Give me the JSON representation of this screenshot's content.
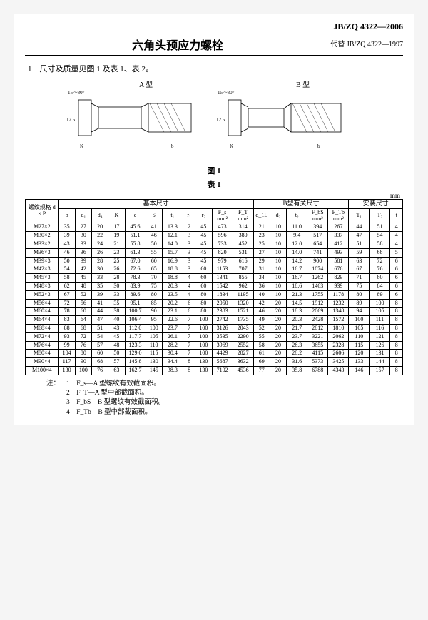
{
  "standard_code": "JB/ZQ 4322—2006",
  "replaces": "代替 JB/ZQ 4322—1997",
  "title": "六角头预应力螺栓",
  "section1": "1　尺寸及质量见图 1 及表 1、表 2。",
  "fig_label_a": "A 型",
  "fig_label_b": "B 型",
  "fig_caption": "图 1",
  "table_caption": "表 1",
  "unit": "mm",
  "group_basic": "基本尺寸",
  "group_b": "B型有关尺寸",
  "group_mount": "安装尺寸",
  "headers1": {
    "spec": "螺纹规格\nd × P",
    "b": "b",
    "d1": "d₁",
    "d4": "d₄",
    "K": "K",
    "e": "e",
    "S": "S",
    "t1": "t₁",
    "r1": "r₁",
    "r2": "r₂",
    "Fs": "F_s\nmm²",
    "FT": "F_T\nmm²",
    "d1b": "d_1L",
    "d2b": "d₂",
    "t2": "t₂",
    "FbS": "F_bS\nmm²",
    "FTb": "F_Tb\nmm²",
    "T1": "T₁",
    "T2": "T₂",
    "t": "t"
  },
  "rows": [
    [
      "M27×2",
      "35",
      "27",
      "20",
      "17",
      "45.6",
      "41",
      "13.3",
      "2",
      "45",
      "473",
      "314",
      "21",
      "10",
      "11.0",
      "394",
      "267",
      "44",
      "51",
      "4"
    ],
    [
      "M30×2",
      "39",
      "30",
      "22",
      "19",
      "51.1",
      "46",
      "12.1",
      "3",
      "45",
      "596",
      "380",
      "23",
      "10",
      "9.4",
      "517",
      "337",
      "47",
      "54",
      "4"
    ],
    [
      "M33×2",
      "43",
      "33",
      "24",
      "21",
      "55.8",
      "50",
      "14.0",
      "3",
      "45",
      "733",
      "452",
      "25",
      "10",
      "12.0",
      "654",
      "412",
      "51",
      "58",
      "4"
    ],
    [
      "M36×3",
      "46",
      "36",
      "26",
      "23",
      "61.3",
      "55",
      "15.7",
      "3",
      "45",
      "820",
      "531",
      "27",
      "10",
      "14.0",
      "741",
      "493",
      "59",
      "68",
      "5"
    ],
    [
      "M39×3",
      "50",
      "39",
      "28",
      "25",
      "67.0",
      "60",
      "16.9",
      "3",
      "45",
      "979",
      "616",
      "29",
      "10",
      "14.2",
      "900",
      "581",
      "63",
      "72",
      "6"
    ],
    [
      "M42×3",
      "54",
      "42",
      "30",
      "26",
      "72.6",
      "65",
      "18.8",
      "3",
      "60",
      "1153",
      "707",
      "31",
      "10",
      "16.7",
      "1074",
      "676",
      "67",
      "76",
      "6"
    ],
    [
      "M45×3",
      "58",
      "45",
      "33",
      "28",
      "78.3",
      "70",
      "18.8",
      "4",
      "60",
      "1341",
      "855",
      "34",
      "10",
      "16.7",
      "1262",
      "829",
      "71",
      "80",
      "6"
    ],
    [
      "M48×3",
      "62",
      "48",
      "35",
      "30",
      "83.9",
      "75",
      "20.3",
      "4",
      "60",
      "1542",
      "962",
      "36",
      "10",
      "18.6",
      "1463",
      "939",
      "75",
      "84",
      "6"
    ],
    [
      "M52×3",
      "67",
      "52",
      "39",
      "33",
      "89.6",
      "80",
      "23.5",
      "4",
      "80",
      "1834",
      "1195",
      "40",
      "10",
      "21.3",
      "1755",
      "1178",
      "80",
      "89",
      "6"
    ],
    [
      "M56×4",
      "72",
      "56",
      "41",
      "35",
      "95.1",
      "85",
      "20.2",
      "6",
      "80",
      "2050",
      "1320",
      "42",
      "20",
      "14.5",
      "1912",
      "1232",
      "89",
      "100",
      "8"
    ],
    [
      "M60×4",
      "78",
      "60",
      "44",
      "38",
      "100.7",
      "90",
      "23.1",
      "6",
      "80",
      "2383",
      "1521",
      "46",
      "20",
      "18.3",
      "2069",
      "1348",
      "94",
      "105",
      "8"
    ],
    [
      "M64×4",
      "83",
      "64",
      "47",
      "40",
      "106.4",
      "95",
      "22.6",
      "7",
      "100",
      "2742",
      "1735",
      "49",
      "20",
      "20.3",
      "2428",
      "1572",
      "100",
      "111",
      "8"
    ],
    [
      "M68×4",
      "88",
      "68",
      "51",
      "43",
      "112.0",
      "100",
      "23.7",
      "7",
      "100",
      "3126",
      "2043",
      "52",
      "20",
      "21.7",
      "2812",
      "1810",
      "105",
      "116",
      "8"
    ],
    [
      "M72×4",
      "93",
      "72",
      "54",
      "45",
      "117.7",
      "105",
      "26.1",
      "7",
      "100",
      "3535",
      "2290",
      "55",
      "20",
      "23.7",
      "3221",
      "2062",
      "110",
      "121",
      "8"
    ],
    [
      "M76×4",
      "99",
      "76",
      "57",
      "48",
      "123.3",
      "110",
      "28.2",
      "7",
      "100",
      "3969",
      "2552",
      "58",
      "20",
      "26.3",
      "3655",
      "2328",
      "115",
      "126",
      "8"
    ],
    [
      "M80×4",
      "104",
      "80",
      "60",
      "50",
      "129.0",
      "115",
      "30.4",
      "7",
      "100",
      "4429",
      "2827",
      "61",
      "20",
      "28.2",
      "4115",
      "2606",
      "120",
      "131",
      "8"
    ],
    [
      "M90×4",
      "117",
      "90",
      "68",
      "57",
      "145.8",
      "130",
      "34.4",
      "8",
      "130",
      "5687",
      "3632",
      "69",
      "20",
      "31.6",
      "5373",
      "3425",
      "133",
      "144",
      "8"
    ],
    [
      "M100×4",
      "130",
      "100",
      "76",
      "63",
      "162.7",
      "145",
      "38.3",
      "8",
      "130",
      "7102",
      "4536",
      "77",
      "20",
      "35.8",
      "6788",
      "4343",
      "146",
      "157",
      "8"
    ]
  ],
  "notes_lead": "注：",
  "notes": [
    "1　F_s—A 型螺纹有效截面积。",
    "2　F_T—A 型中部截面积。",
    "3　F_bS—B 型螺纹有效截面积。",
    "4　F_Tb—B 型中部截面积。"
  ],
  "colors": {
    "text": "#000000",
    "bg": "#ffffff",
    "page_bg": "#f5f5f5"
  }
}
